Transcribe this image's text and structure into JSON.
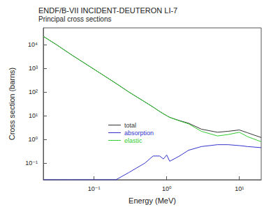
{
  "chart_data": {
    "type": "line",
    "title": "ENDF/B-VII INCIDENT-DEUTERON LI-7",
    "subtitle": "Principal cross sections",
    "xlabel": "Energy (MeV)",
    "ylabel": "Cross section (barns)",
    "log": true,
    "grid": false,
    "legend": "lower center",
    "x": [
      0.02,
      0.03,
      0.05,
      0.1,
      0.2,
      0.3,
      0.5,
      0.65,
      0.8,
      0.9,
      1.0,
      1.1,
      1.5,
      2,
      3,
      5,
      7,
      10,
      13,
      20
    ],
    "series": [
      {
        "name": "total",
        "color": "#333333",
        "values": [
          22000,
          10000,
          3500,
          900,
          230,
          100,
          38,
          23,
          15,
          12,
          10,
          8.5,
          6.2,
          4.8,
          2.7,
          2,
          2.2,
          2.5,
          1.9,
          1.2
        ]
      },
      {
        "name": "absorption",
        "color": "#3333cc",
        "values": [
          0.02,
          0.02,
          0.02,
          0.02,
          0.02,
          0.04,
          0.1,
          0.2,
          0.2,
          0.15,
          0.22,
          0.12,
          0.2,
          0.35,
          0.5,
          0.6,
          0.6,
          0.55,
          0.5,
          0.45
        ]
      },
      {
        "name": "elastic",
        "color": "#33cc33",
        "values": [
          22000,
          10000,
          3500,
          900,
          230,
          100,
          38,
          23,
          15,
          12,
          10,
          8.5,
          6,
          4.5,
          2.2,
          1.4,
          1.6,
          2,
          1.3,
          0.8
        ]
      }
    ],
    "xlim": [
      0.02,
      20
    ],
    "ylim": [
      0.02,
      50000
    ],
    "xticks": [
      {
        "value": 0.1,
        "label": "10⁻¹"
      },
      {
        "value": 1,
        "label": "10⁰"
      },
      {
        "value": 10,
        "label": "10¹"
      }
    ],
    "yticks": [
      {
        "value": 0.1,
        "label": "10⁻¹"
      },
      {
        "value": 1,
        "label": "10⁰"
      },
      {
        "value": 10,
        "label": "10¹"
      },
      {
        "value": 100,
        "label": "10²"
      },
      {
        "value": 1000,
        "label": "10³"
      },
      {
        "value": 10000,
        "label": "10⁴"
      }
    ]
  }
}
